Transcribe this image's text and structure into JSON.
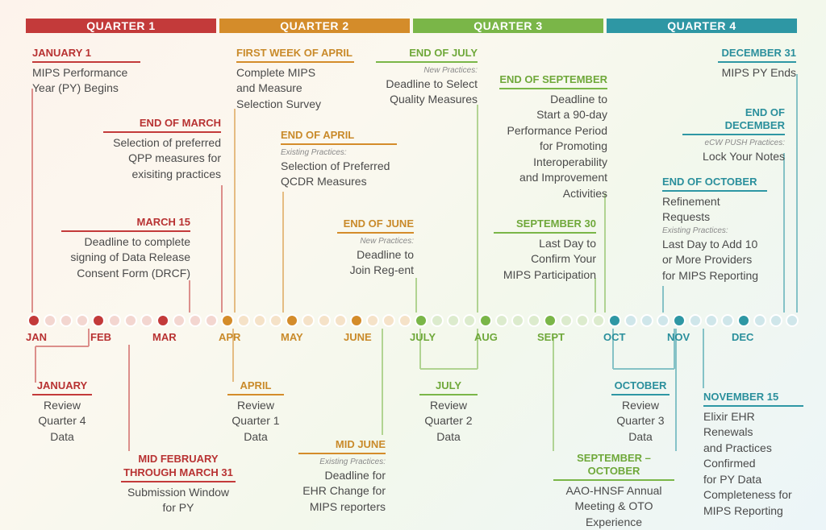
{
  "quarters": [
    {
      "label": "QUARTER 1",
      "color": "#c33a3a"
    },
    {
      "label": "QUARTER 2",
      "color": "#d48c2a"
    },
    {
      "label": "QUARTER 3",
      "color": "#7ab648"
    },
    {
      "label": "QUARTER 4",
      "color": "#2e97a4"
    }
  ],
  "months": [
    "JAN",
    "FEB",
    "MAR",
    "APR",
    "MAY",
    "JUNE",
    "JULY",
    "AUG",
    "SEPT",
    "OCT",
    "NOV",
    "DEC"
  ],
  "top_events": {
    "jan1": {
      "title": "JANUARY 1",
      "body": "MIPS Performance\nYear (PY) Begins"
    },
    "end_march": {
      "title": "END OF MARCH",
      "body": "Selection of preferred\nQPP measures for\nexisiting practices"
    },
    "march15": {
      "title": "MARCH 15",
      "body": "Deadline to complete\nsigning of Data Release\nConsent Form (DRCF)"
    },
    "first_april": {
      "title": "FIRST WEEK OF APRIL",
      "body": "Complete MIPS\nand Measure\nSelection Survey"
    },
    "end_april": {
      "title": "END OF APRIL",
      "sub": "Existing Practices:",
      "body": "Selection of Preferred\nQCDR Measures"
    },
    "end_june": {
      "title": "END OF JUNE",
      "sub": "New Practices:",
      "body": "Deadline to\nJoin Reg-ent"
    },
    "end_july": {
      "title": "END OF JULY",
      "sub": "New Practices:",
      "body": "Deadline to Select\nQuality Measures"
    },
    "end_sept": {
      "title": "END OF SEPTEMBER",
      "body": "Deadline to\nStart a 90-day\nPerformance Period\nfor Promoting\nInteroperability\nand Improvement\nActivities"
    },
    "sept30": {
      "title": "SEPTEMBER 30",
      "body": "Last Day to\nConfirm Your\nMIPS Participation"
    },
    "dec31": {
      "title": "DECEMBER 31",
      "body": "MIPS PY Ends"
    },
    "end_dec": {
      "title": "END OF DECEMBER",
      "sub": "eCW PUSH Practices:",
      "body": "Lock Your Notes"
    },
    "end_oct": {
      "title": "END OF OCTOBER",
      "body": "Refinement\nRequests",
      "sub": "Existing Practices:",
      "body2": "Last Day to Add 10\nor More Providers\nfor MIPS Reporting"
    }
  },
  "bottom_events": {
    "january": {
      "title": "JANUARY",
      "body": "Review\nQuarter 4\nData"
    },
    "mid_feb": {
      "title": "MID FEBRUARY\nTHROUGH MARCH 31",
      "body": "Submission Window\nfor PY"
    },
    "april": {
      "title": "APRIL",
      "body": "Review\nQuarter 1\nData"
    },
    "mid_june": {
      "title": "MID JUNE",
      "sub": "Existing Practices:",
      "body": "Deadline for\nEHR Change for\nMIPS reporters"
    },
    "july": {
      "title": "JULY",
      "body": "Review\nQuarter 2\nData"
    },
    "sept_oct": {
      "title": "SEPTEMBER – OCTOBER",
      "body": "AAO-HNSF Annual\nMeeting & OTO\nExperience"
    },
    "october": {
      "title": "OCTOBER",
      "body": "Review\nQuarter 3\nData"
    },
    "nov15": {
      "title": "NOVEMBER 15",
      "body": "Elixir EHR\nRenewals\nand Practices\nConfirmed\nfor PY Data\nCompleteness for\nMIPS Reporting"
    }
  }
}
